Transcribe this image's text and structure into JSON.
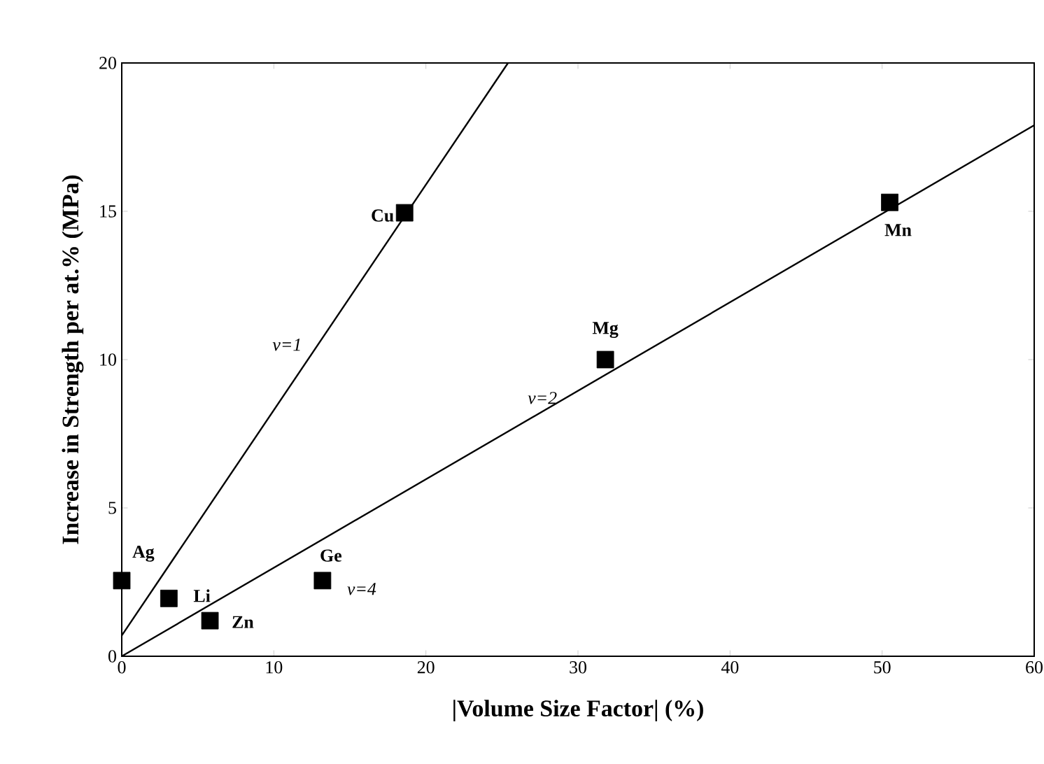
{
  "chart_data": {
    "type": "scatter",
    "xlabel": "|Volume Size Factor| (%)",
    "ylabel": "Increase in Strength per at.% (MPa)",
    "xlim": [
      0,
      60
    ],
    "ylim": [
      0,
      20
    ],
    "xticks": [
      0,
      10,
      20,
      30,
      40,
      50,
      60
    ],
    "yticks": [
      0,
      5,
      10,
      15,
      20
    ],
    "grid": false,
    "series": [
      {
        "color": "#000000",
        "marker": "square",
        "x": [
          0,
          3.1,
          5.8,
          13.2,
          18.6,
          31.8,
          50.5
        ],
        "values": [
          2.55,
          1.95,
          1.2,
          2.55,
          14.95,
          10.0,
          15.3
        ]
      },
      {
        "type": "line",
        "color": "#000000",
        "marker": "none",
        "line_style": "solid",
        "x": [
          0,
          25.4
        ],
        "values": [
          0.7,
          20
        ]
      },
      {
        "type": "line",
        "color": "#000000",
        "marker": "none",
        "line_style": "solid",
        "x": [
          0,
          60
        ],
        "values": [
          0,
          17.9
        ]
      }
    ],
    "annotations": [
      {
        "text": "Ag",
        "x": 0,
        "y": 2.55
      },
      {
        "text": "Li",
        "x": 3.1,
        "y": 1.95
      },
      {
        "text": "Zn",
        "x": 5.8,
        "y": 1.2
      },
      {
        "text": "Ge",
        "x": 13.2,
        "y": 2.55
      },
      {
        "text": "Cu",
        "x": 18.6,
        "y": 14.95
      },
      {
        "text": "Mg",
        "x": 31.8,
        "y": 10.0
      },
      {
        "text": "Mn",
        "x": 50.5,
        "y": 15.3
      },
      {
        "text": "*v=1*",
        "x": 12.9,
        "y": 10.5
      },
      {
        "text": "*v=2*",
        "x": 29.5,
        "y": 8.8
      },
      {
        "text": "*v=4*",
        "x": 13.2,
        "y": 2.55
      }
    ]
  }
}
